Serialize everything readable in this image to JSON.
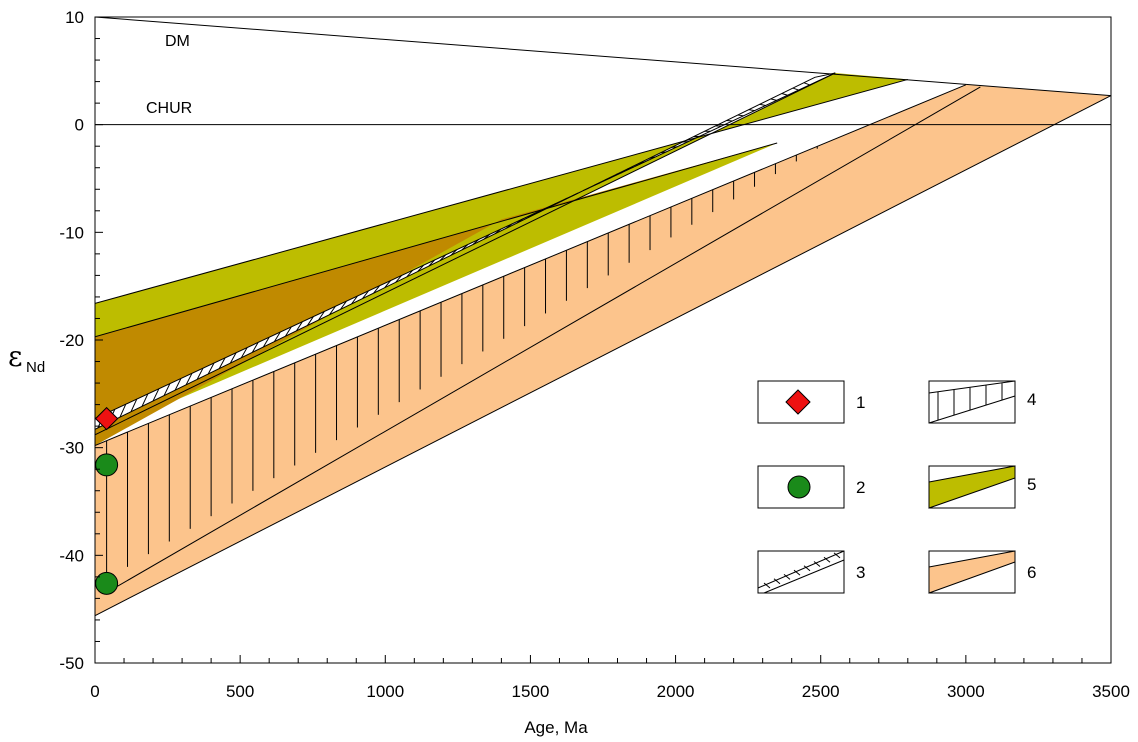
{
  "chart_data": {
    "type": "line",
    "xlabel": "Age, Ma",
    "ylabel": "ε",
    "ylabel_sub": "Nd",
    "xlim": [
      0,
      3500
    ],
    "ylim": [
      -50,
      10
    ],
    "x_ticks": [
      0,
      500,
      1000,
      1500,
      2000,
      2500,
      3000,
      3500
    ],
    "x_tick_labels": [
      "0",
      "500",
      "1000",
      "1500",
      "2000",
      "2500",
      "3000",
      "3500"
    ],
    "y_ticks": [
      10,
      0,
      -10,
      -20,
      -30,
      -40,
      -50
    ],
    "y_tick_labels": [
      "10",
      "0",
      "-10",
      "-20",
      "-30",
      "-40",
      "-50"
    ],
    "grid": false,
    "reference_lines": [
      {
        "label": "DM",
        "points": [
          [
            0,
            10
          ],
          [
            3500,
            2.7
          ]
        ]
      },
      {
        "label": "CHUR",
        "points": [
          [
            0,
            0
          ],
          [
            3500,
            0
          ]
        ]
      }
    ],
    "bands": [
      {
        "legend": "6",
        "color": "#FCC48C",
        "upper": [
          [
            0,
            -29.8
          ],
          [
            3000,
            3.7
          ]
        ],
        "lower": [
          [
            0,
            -45.6
          ],
          [
            3500,
            2.7
          ]
        ]
      },
      {
        "legend": "5",
        "color": "#BDBD00",
        "upper": [
          [
            0,
            -16.6
          ],
          [
            2800,
            4.2
          ]
        ],
        "lower": [
          [
            0,
            -28.8
          ],
          [
            2550,
            4.8
          ]
        ]
      },
      {
        "legend": "5",
        "color": "#BDBD00",
        "upper": [
          [
            0,
            -19.7
          ],
          [
            2350,
            -1.7
          ]
        ],
        "lower": [
          [
            0,
            -28.8
          ],
          [
            2350,
            -1.7
          ]
        ]
      }
    ],
    "overlap_color": "#C08A00",
    "hatched_bands": [
      {
        "legend": "4",
        "hatch": "vertical",
        "upper": [
          [
            0,
            -29.8
          ],
          [
            3000,
            3.7
          ]
        ],
        "lower": [
          [
            0,
            -43.3
          ],
          [
            3050,
            3.5
          ]
        ]
      },
      {
        "legend": "3",
        "hatch": "diagonal",
        "upper": [
          [
            0,
            -27.3
          ],
          [
            2550,
            4.8
          ]
        ],
        "lower": [
          [
            0,
            -28.3
          ],
          [
            2480,
            4.4
          ]
        ]
      }
    ],
    "points": [
      {
        "legend": "1",
        "marker": "diamond",
        "color": "#EE1111",
        "x": 40,
        "y": -27.3
      },
      {
        "legend": "2",
        "marker": "circle",
        "color": "#1A8A1A",
        "x": 40,
        "y": -31.6
      },
      {
        "legend": "2",
        "marker": "circle",
        "color": "#1A8A1A",
        "x": 40,
        "y": -42.6
      }
    ],
    "legend_labels": [
      "1",
      "2",
      "3",
      "4",
      "5",
      "6"
    ]
  }
}
